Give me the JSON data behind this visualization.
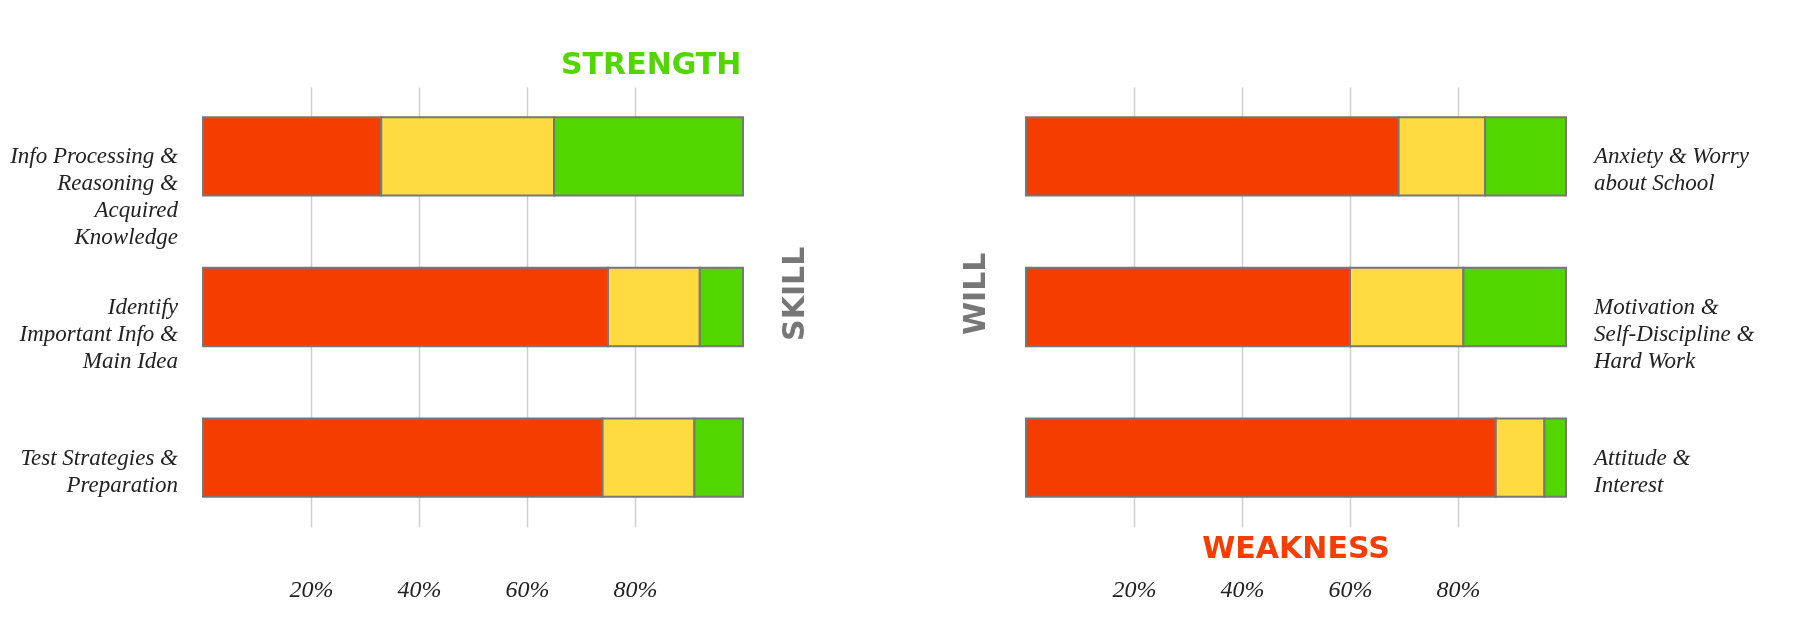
{
  "chart_data": [
    {
      "type": "bar",
      "orientation": "horizontal",
      "stacked": true,
      "categories": [
        "Info Processing & Reasoning & Acquired Knowledge",
        "Identify Important Info & Main Idea",
        "Test Strategies & Preparation"
      ],
      "series": [
        {
          "color": "#f53d00",
          "values": [
            33,
            75,
            74
          ]
        },
        {
          "color": "#fedb41",
          "values": [
            32,
            17,
            17
          ]
        },
        {
          "color": "#52d600",
          "values": [
            35,
            8,
            9
          ]
        }
      ],
      "xlim": [
        0,
        100
      ],
      "xticks": [
        {
          "value": 20,
          "label": "20%"
        },
        {
          "value": 40,
          "label": "40%"
        },
        {
          "value": 60,
          "label": "60%"
        },
        {
          "value": 80,
          "label": "80%"
        }
      ],
      "grid": "x",
      "legend": false,
      "annotations": [
        "STRENGTH",
        "SKILL"
      ]
    },
    {
      "type": "bar",
      "orientation": "horizontal",
      "stacked": true,
      "categories": [
        "Anxiety & Worry about School",
        "Motivation & Self-Discipline & Hard Work",
        "Attitude & Interest"
      ],
      "series": [
        {
          "color": "#f53d00",
          "values": [
            69,
            60,
            87
          ]
        },
        {
          "color": "#fedb41",
          "values": [
            16,
            21,
            9
          ]
        },
        {
          "color": "#52d600",
          "values": [
            15,
            19,
            4
          ]
        }
      ],
      "xlim": [
        0,
        100
      ],
      "xticks": [
        {
          "value": 20,
          "label": "20%"
        },
        {
          "value": 40,
          "label": "40%"
        },
        {
          "value": 60,
          "label": "60%"
        },
        {
          "value": 80,
          "label": "80%"
        }
      ],
      "grid": "x",
      "legend": false,
      "annotations": [
        "WILL",
        "WEAKNESS"
      ]
    }
  ]
}
